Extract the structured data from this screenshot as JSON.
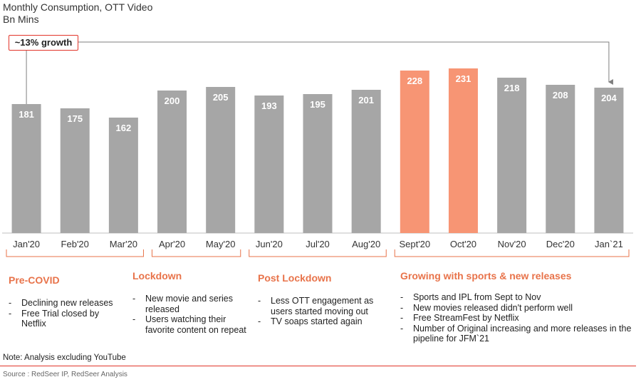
{
  "header": {
    "title": "Monthly Consumption, OTT Video",
    "subtitle": "Bn Mins"
  },
  "callout": {
    "text": "~13% growth"
  },
  "chart_data": {
    "type": "bar",
    "title": "Monthly Consumption, OTT Video",
    "ylabel": "Bn Mins",
    "xlabel": "",
    "categories": [
      "Jan'20",
      "Feb'20",
      "Mar'20",
      "Apr'20",
      "May'20",
      "Jun'20",
      "Jul'20",
      "Aug'20",
      "Sept'20",
      "Oct'20",
      "Nov'20",
      "Dec'20",
      "Jan`21"
    ],
    "values": [
      181,
      175,
      162,
      200,
      205,
      193,
      195,
      201,
      228,
      231,
      218,
      208,
      204
    ],
    "highlighted": [
      "Sept'20",
      "Oct'20"
    ],
    "colors": {
      "default": "#a6a6a6",
      "highlight": "#f79574",
      "accent": "#e8734a",
      "callout_border": "#e2352a"
    },
    "ylim": [
      0,
      260
    ],
    "grid": false,
    "legend": "none"
  },
  "sections": [
    {
      "title": "Pre-COVID",
      "items": [
        "Declining new releases",
        "Free Trial closed by Netflix"
      ]
    },
    {
      "title": "Lockdown",
      "items": [
        "New movie and series released",
        "Users watching their favorite content on repeat"
      ]
    },
    {
      "title": "Post Lockdown",
      "items": [
        "Less OTT engagement as users started moving out",
        "TV soaps started again"
      ]
    },
    {
      "title": "Growing with sports & new releases",
      "items": [
        "Sports and IPL from Sept to Nov",
        "New movies released didn't perform well",
        "Free StreamFest by Netflix",
        "Number of Original increasing and more releases in the pipeline for JFM`21"
      ]
    }
  ],
  "footer": {
    "note": "Note: Analysis excluding YouTube",
    "source": "Source : RedSeer IP, RedSeer Analysis"
  }
}
